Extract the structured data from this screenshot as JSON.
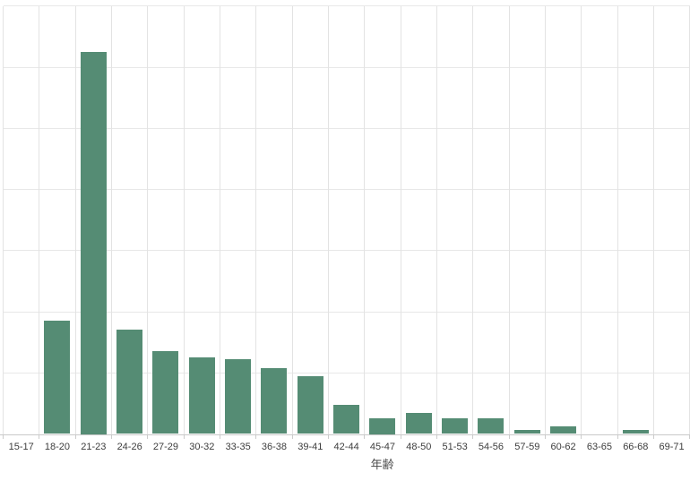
{
  "chart_data": {
    "type": "bar",
    "title": "",
    "xlabel": "年齢",
    "ylabel": "",
    "categories": [
      "15-17",
      "18-20",
      "21-23",
      "24-26",
      "27-29",
      "30-32",
      "33-35",
      "36-38",
      "39-41",
      "42-44",
      "45-47",
      "48-50",
      "51-53",
      "54-56",
      "57-59",
      "60-62",
      "63-65",
      "66-68",
      "69-71"
    ],
    "values": [
      0,
      18.6,
      62.5,
      17.0,
      13.6,
      12.6,
      12.2,
      10.7,
      9.5,
      4.7,
      2.5,
      3.5,
      2.6,
      2.6,
      0.7,
      1.2,
      0,
      0.7,
      0
    ],
    "ylim": [
      0,
      70
    ],
    "y_gridline_step": 10,
    "y_tick_labels_visible": false,
    "grid": true,
    "legend": false
  },
  "colors": {
    "background": "#ffffff",
    "gridline_horizontal": "#e8e8e8",
    "gridline_vertical": "#e3e3e3",
    "axis_line": "#c9c9c9",
    "tick": "#cccccc",
    "tick_label": "#3d3d3d",
    "axis_title": "#4a4a4a",
    "bar": "#558c74"
  }
}
